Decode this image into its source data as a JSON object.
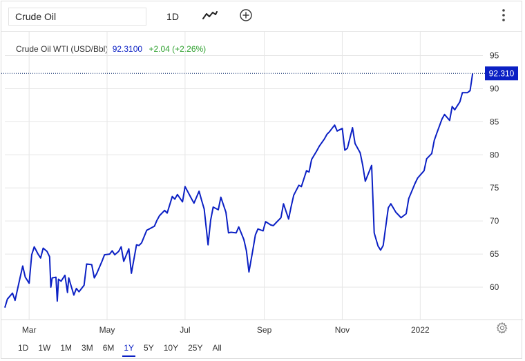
{
  "toolbar": {
    "symbol_value": "Crude Oil",
    "interval_label": "1D",
    "chart_type_icon": "line-chart-icon",
    "compare_icon": "plus-circle-icon",
    "menu_icon": "vertical-dots-icon"
  },
  "legend": {
    "name": "Crude Oil WTI (USD/Bbl)",
    "price": "92.3100",
    "change": "+2.04 (+2.26%)"
  },
  "last_price_label": "92.310",
  "colors": {
    "line": "#0b20c4",
    "positive": "#2ca02c",
    "grid": "#e6e6e6"
  },
  "chart_data": {
    "type": "line",
    "title": "Crude Oil WTI (USD/Bbl)",
    "y_ticks": [
      60,
      65,
      70,
      75,
      80,
      85,
      90,
      95
    ],
    "y_tick_labels": [
      "60",
      "65",
      "70",
      "75",
      "80",
      "85",
      "90",
      "95"
    ],
    "ylim": [
      55.1,
      98.6
    ],
    "x_ticks": [
      "2021-03-01",
      "2021-05-01",
      "2021-07-01",
      "2021-09-01",
      "2021-11-01",
      "2022-01-01"
    ],
    "x_tick_labels": [
      "Mar",
      "May",
      "Jul",
      "Sep",
      "Nov",
      "2022"
    ],
    "xlim": [
      "2021-02-10",
      "2022-02-19"
    ],
    "grid": true,
    "legend": "top-left",
    "last_value": 92.31,
    "series": [
      {
        "name": "Crude Oil WTI (USD/Bbl)",
        "x": [
          "2021-02-10",
          "2021-02-12",
          "2021-02-16",
          "2021-02-18",
          "2021-02-22",
          "2021-02-24",
          "2021-02-26",
          "2021-03-01",
          "2021-03-03",
          "2021-03-05",
          "2021-03-08",
          "2021-03-10",
          "2021-03-12",
          "2021-03-15",
          "2021-03-17",
          "2021-03-18",
          "2021-03-19",
          "2021-03-22",
          "2021-03-23",
          "2021-03-24",
          "2021-03-26",
          "2021-03-29",
          "2021-03-31",
          "2021-04-01",
          "2021-04-05",
          "2021-04-07",
          "2021-04-09",
          "2021-04-13",
          "2021-04-15",
          "2021-04-19",
          "2021-04-21",
          "2021-04-23",
          "2021-04-27",
          "2021-04-29",
          "2021-05-03",
          "2021-05-05",
          "2021-05-07",
          "2021-05-10",
          "2021-05-12",
          "2021-05-14",
          "2021-05-18",
          "2021-05-20",
          "2021-05-24",
          "2021-05-26",
          "2021-05-28",
          "2021-06-01",
          "2021-06-03",
          "2021-06-07",
          "2021-06-09",
          "2021-06-11",
          "2021-06-15",
          "2021-06-17",
          "2021-06-21",
          "2021-06-23",
          "2021-06-25",
          "2021-06-29",
          "2021-07-01",
          "2021-07-06",
          "2021-07-08",
          "2021-07-12",
          "2021-07-14",
          "2021-07-16",
          "2021-07-19",
          "2021-07-21",
          "2021-07-23",
          "2021-07-27",
          "2021-07-29",
          "2021-08-02",
          "2021-08-04",
          "2021-08-06",
          "2021-08-10",
          "2021-08-12",
          "2021-08-16",
          "2021-08-18",
          "2021-08-20",
          "2021-08-23",
          "2021-08-25",
          "2021-08-27",
          "2021-08-31",
          "2021-09-02",
          "2021-09-06",
          "2021-09-08",
          "2021-09-10",
          "2021-09-14",
          "2021-09-16",
          "2021-09-20",
          "2021-09-22",
          "2021-09-24",
          "2021-09-28",
          "2021-09-30",
          "2021-10-04",
          "2021-10-06",
          "2021-10-08",
          "2021-10-12",
          "2021-10-14",
          "2021-10-18",
          "2021-10-20",
          "2021-10-22",
          "2021-10-26",
          "2021-10-28",
          "2021-11-01",
          "2021-11-03",
          "2021-11-05",
          "2021-11-09",
          "2021-11-11",
          "2021-11-15",
          "2021-11-17",
          "2021-11-19",
          "2021-11-24",
          "2021-11-26",
          "2021-11-29",
          "2021-12-01",
          "2021-12-03",
          "2021-12-07",
          "2021-12-09",
          "2021-12-13",
          "2021-12-15",
          "2021-12-17",
          "2021-12-21",
          "2021-12-23",
          "2021-12-28",
          "2021-12-30",
          "2022-01-04",
          "2022-01-06",
          "2022-01-10",
          "2022-01-12",
          "2022-01-14",
          "2022-01-18",
          "2022-01-20",
          "2022-01-24",
          "2022-01-26",
          "2022-01-28",
          "2022-02-01",
          "2022-02-03",
          "2022-02-07",
          "2022-02-09",
          "2022-02-11"
        ],
        "values": [
          56.9,
          58.2,
          59.1,
          58.0,
          61.5,
          63.2,
          61.5,
          60.6,
          64.9,
          66.1,
          65.0,
          64.4,
          65.9,
          65.4,
          64.6,
          60.0,
          61.4,
          61.5,
          57.9,
          61.2,
          60.9,
          61.8,
          59.2,
          61.4,
          58.8,
          59.8,
          59.3,
          60.3,
          63.5,
          63.4,
          61.4,
          62.1,
          63.9,
          64.9,
          65.0,
          65.5,
          64.9,
          65.4,
          66.1,
          63.9,
          65.8,
          62.1,
          66.4,
          66.3,
          66.7,
          68.6,
          68.8,
          69.2,
          70.1,
          70.8,
          71.6,
          71.2,
          73.7,
          73.3,
          74.0,
          72.9,
          75.2,
          73.4,
          72.7,
          74.5,
          73.1,
          71.8,
          66.4,
          70.1,
          72.1,
          71.7,
          73.6,
          71.3,
          68.2,
          68.3,
          68.2,
          69.1,
          67.2,
          65.5,
          62.3,
          65.6,
          67.9,
          68.8,
          68.5,
          69.9,
          69.4,
          69.3,
          69.7,
          70.5,
          72.6,
          70.3,
          72.2,
          73.9,
          75.4,
          75.2,
          77.6,
          77.4,
          79.3,
          80.6,
          81.3,
          82.4,
          83.1,
          83.5,
          84.5,
          83.6,
          84.0,
          80.7,
          81.0,
          84.1,
          81.7,
          80.3,
          78.4,
          76.0,
          78.4,
          68.2,
          66.2,
          65.6,
          66.3,
          72.0,
          72.6,
          71.3,
          70.9,
          70.5,
          71.1,
          73.4,
          75.7,
          76.5,
          77.6,
          79.4,
          80.2,
          82.2,
          83.3,
          85.4,
          86.1,
          85.2,
          87.3,
          86.8,
          88.0,
          89.4,
          89.4,
          89.7,
          92.3
        ]
      }
    ]
  },
  "range_buttons": [
    "1D",
    "1W",
    "1M",
    "3M",
    "6M",
    "1Y",
    "5Y",
    "10Y",
    "25Y",
    "All"
  ],
  "active_range": "1Y",
  "settings_icon": "gear-icon"
}
